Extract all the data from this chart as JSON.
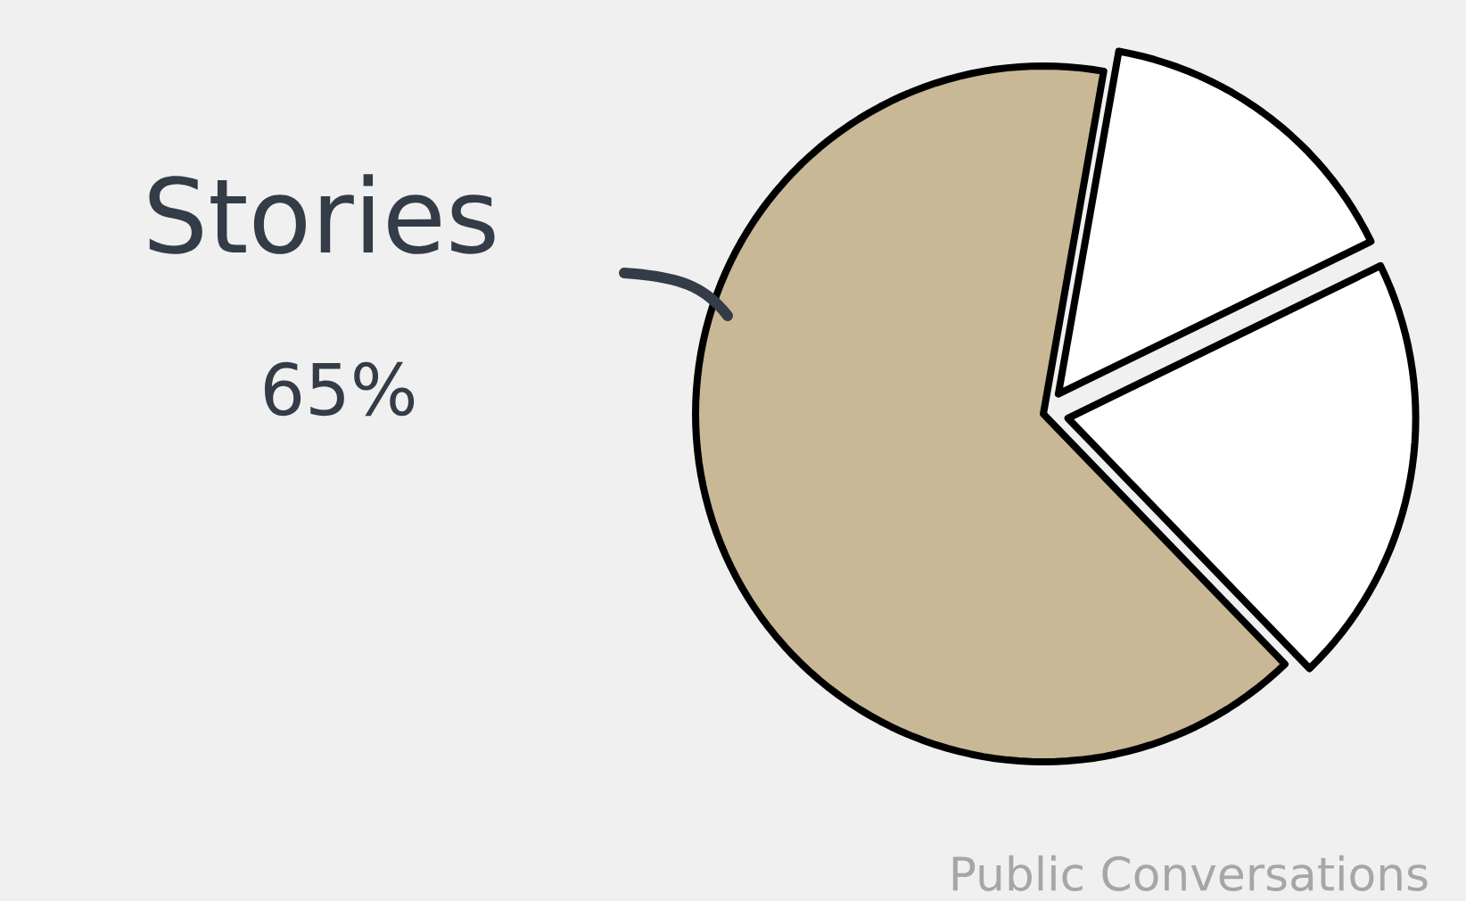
{
  "chart_data": {
    "type": "pie",
    "categories": [
      "Stories",
      null,
      null
    ],
    "values": [
      65,
      20,
      15
    ],
    "colors": [
      "#c8b896",
      "#ffffff",
      "#ffffff"
    ],
    "value_labels": [
      "65%",
      null,
      null
    ],
    "annotations": [
      "Public Conversations"
    ]
  }
}
